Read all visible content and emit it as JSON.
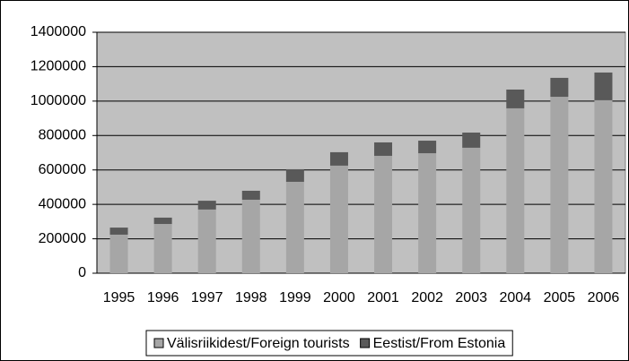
{
  "chart_data": {
    "type": "stacked_bar",
    "categories": [
      "1995",
      "1996",
      "1997",
      "1998",
      "1999",
      "2000",
      "2001",
      "2002",
      "2003",
      "2004",
      "2005",
      "2006"
    ],
    "series": [
      {
        "name": "Välisriikidest/Foreign tourists",
        "color": "#a6a6a6",
        "values": [
          224000,
          286000,
          370000,
          427000,
          531000,
          625000,
          682000,
          697000,
          729000,
          958000,
          1025000,
          1005000
        ]
      },
      {
        "name": "Eestist/From Estonia",
        "color": "#595959",
        "values": [
          41000,
          37000,
          51000,
          52000,
          73000,
          78000,
          78000,
          73000,
          88000,
          109000,
          110000,
          161000
        ]
      }
    ],
    "ylim": [
      0,
      1400000
    ],
    "yticks": [
      0,
      200000,
      400000,
      600000,
      800000,
      1000000,
      1200000,
      1400000
    ],
    "grid": true,
    "legend": "bottom"
  }
}
